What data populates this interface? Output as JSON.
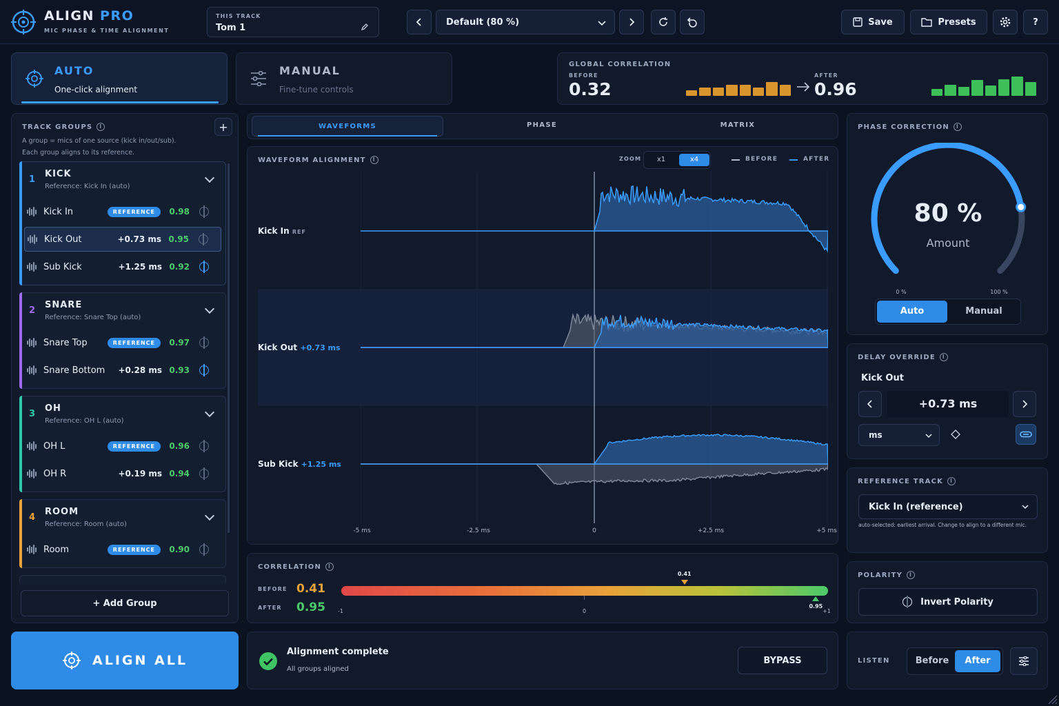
{
  "app": {
    "name": "ALIGN",
    "name_accent": "PRO",
    "subtitle": "MIC PHASE & TIME ALIGNMENT"
  },
  "track": {
    "label": "THIS TRACK",
    "value": "Tom 1"
  },
  "preset": {
    "value": "Default (80 %)",
    "save": "Save",
    "presets": "Presets",
    "help": "?"
  },
  "modes": {
    "auto": {
      "title": "AUTO",
      "sub": "One-click alignment"
    },
    "manual": {
      "title": "MANUAL",
      "sub": "Fine-tune controls"
    }
  },
  "global": {
    "label": "GLOBAL CORRELATION",
    "before_label": "BEFORE",
    "before": "0.32",
    "after_label": "AFTER",
    "after": "0.96",
    "before_bars": [
      0.25,
      0.4,
      0.4,
      0.55,
      0.55,
      0.4,
      0.7,
      0.55
    ],
    "after_bars": [
      0.3,
      0.55,
      0.42,
      0.8,
      0.5,
      0.85,
      1.0,
      0.7
    ]
  },
  "groups": {
    "label": "TRACK GROUPS",
    "desc1": "A group = mics of one source (kick in/out/sub).",
    "desc2": "Each group aligns to its reference.",
    "add": "+ Add Group",
    "items": [
      {
        "num": "1",
        "name": "KICK",
        "ref": "Reference: Kick In (auto)",
        "color": "#3b9cff",
        "tracks": [
          {
            "name": "Kick In",
            "tag": "REFERENCE",
            "offset": "",
            "corr": "0.98",
            "pol": false
          },
          {
            "name": "Kick Out",
            "tag": "",
            "offset": "+0.73 ms",
            "corr": "0.95",
            "pol": false
          },
          {
            "name": "Sub Kick",
            "tag": "",
            "offset": "+1.25 ms",
            "corr": "0.92",
            "pol": true
          }
        ]
      },
      {
        "num": "2",
        "name": "SNARE",
        "ref": "Reference: Snare Top (auto)",
        "color": "#9d6cf0",
        "tracks": [
          {
            "name": "Snare Top",
            "tag": "REFERENCE",
            "offset": "",
            "corr": "0.97",
            "pol": false
          },
          {
            "name": "Snare Bottom",
            "tag": "",
            "offset": "+0.28 ms",
            "corr": "0.93",
            "pol": true
          }
        ]
      },
      {
        "num": "3",
        "name": "OH",
        "ref": "Reference: OH L (auto)",
        "color": "#2ec7a8",
        "tracks": [
          {
            "name": "OH L",
            "tag": "REFERENCE",
            "offset": "",
            "corr": "0.96",
            "pol": false
          },
          {
            "name": "OH R",
            "tag": "",
            "offset": "+0.19 ms",
            "corr": "0.94",
            "pol": false
          }
        ]
      },
      {
        "num": "4",
        "name": "ROOM",
        "ref": "Reference: Room (auto)",
        "color": "#e8a23a",
        "tracks": [
          {
            "name": "Room",
            "tag": "REFERENCE",
            "offset": "",
            "corr": "0.90",
            "pol": false
          }
        ]
      }
    ]
  },
  "tabs": [
    "WAVEFORMS",
    "PHASE",
    "MATRIX"
  ],
  "waveform": {
    "label": "WAVEFORM ALIGNMENT",
    "zoom_label": "ZOOM",
    "zoom": [
      "x1",
      "x4"
    ],
    "legend_before": "BEFORE",
    "legend_after": "AFTER",
    "tracks": [
      {
        "name": "Kick In",
        "tag": "REF",
        "offset": ""
      },
      {
        "name": "Kick Out",
        "tag": "",
        "offset": "+0.73 ms"
      },
      {
        "name": "Sub Kick",
        "tag": "",
        "offset": "+1.25 ms"
      }
    ],
    "axis": [
      "-5 ms",
      "-2.5 ms",
      "0",
      "+2.5 ms",
      "+5 ms"
    ]
  },
  "correlation": {
    "label": "CORRELATION",
    "before_label": "BEFORE",
    "before": "0.41",
    "after_label": "AFTER",
    "after": "0.95",
    "marker_before": "0.41",
    "marker_after": "0.95",
    "axis": [
      "-1",
      "0",
      "+1"
    ],
    "before_val": 0.41,
    "after_val": 0.95
  },
  "align_all": "ALIGN ALL",
  "status": {
    "title": "Alignment complete",
    "sub": "All groups aligned",
    "bypass": "BYPASS"
  },
  "phase": {
    "label": "PHASE CORRECTION",
    "value": "80 %",
    "caption": "Amount",
    "min": "0 %",
    "max": "100 %",
    "amount": 0.8,
    "auto": "Auto",
    "manual": "Manual"
  },
  "delay": {
    "label": "DELAY OVERRIDE",
    "track": "Kick Out",
    "value": "+0.73 ms",
    "unit": "ms"
  },
  "reference": {
    "label": "REFERENCE TRACK",
    "value": "Kick In (reference)",
    "note": "auto-selected: earliest arrival. Change to align to a different mic."
  },
  "polarity": {
    "label": "POLARITY",
    "button": "Invert Polarity"
  },
  "listen": {
    "label": "LISTEN",
    "before": "Before",
    "after": "After"
  }
}
